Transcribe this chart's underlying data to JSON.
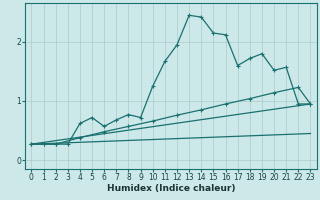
{
  "xlabel": "Humidex (Indice chaleur)",
  "bg_color": "#cce8e8",
  "grid_color": "#aacccc",
  "line_color": "#1a7070",
  "xlim": [
    -0.5,
    23.5
  ],
  "ylim": [
    -0.15,
    2.65
  ],
  "xticks": [
    0,
    1,
    2,
    3,
    4,
    5,
    6,
    7,
    8,
    9,
    10,
    11,
    12,
    13,
    14,
    15,
    16,
    17,
    18,
    19,
    20,
    21,
    22,
    23
  ],
  "yticks": [
    0,
    1,
    2
  ],
  "line1_x": [
    0,
    1,
    2,
    3,
    4,
    5,
    6,
    7,
    8,
    9,
    10,
    11,
    12,
    13,
    14,
    15,
    16,
    17,
    18,
    19,
    20,
    21,
    22,
    23
  ],
  "line1_y": [
    0.27,
    0.27,
    0.27,
    0.27,
    0.62,
    0.72,
    0.57,
    0.68,
    0.77,
    0.72,
    1.25,
    1.67,
    1.95,
    2.45,
    2.42,
    2.15,
    2.12,
    1.6,
    1.72,
    1.8,
    1.52,
    1.57,
    0.95,
    0.95
  ],
  "line2_x": [
    0,
    2,
    4,
    6,
    8,
    10,
    12,
    14,
    16,
    18,
    20,
    22,
    23
  ],
  "line2_y": [
    0.27,
    0.27,
    0.38,
    0.48,
    0.57,
    0.66,
    0.76,
    0.85,
    0.95,
    1.04,
    1.14,
    1.23,
    0.95
  ],
  "line3_x": [
    0,
    23
  ],
  "line3_y": [
    0.27,
    0.45
  ],
  "line4_x": [
    0,
    23
  ],
  "line4_y": [
    0.27,
    0.95
  ]
}
